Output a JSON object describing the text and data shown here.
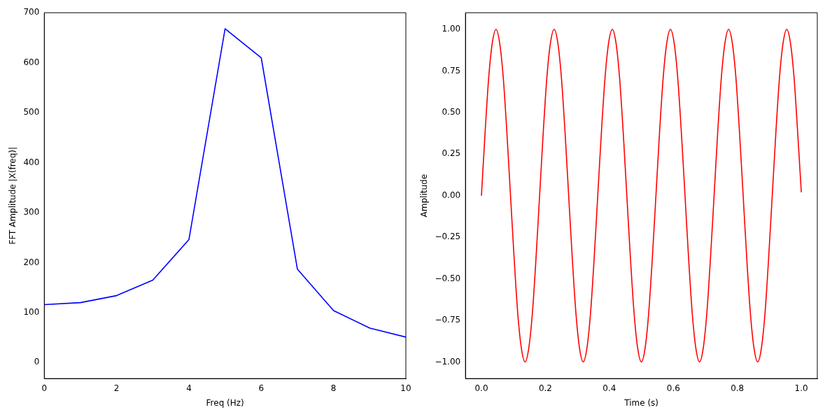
{
  "chart_data": [
    {
      "type": "line",
      "xlabel": "Freq (Hz)",
      "ylabel": "FFT Amplitude |X(freq)|",
      "x": [
        0,
        1,
        2,
        3,
        4,
        5,
        6,
        7,
        8,
        9,
        10
      ],
      "xlim": [
        0,
        10
      ],
      "xticks": [
        0,
        2,
        4,
        6,
        8,
        10
      ],
      "ylim": [
        -32,
        700
      ],
      "yticks": [
        0,
        100,
        200,
        300,
        400,
        500,
        600,
        700
      ],
      "series": [
        {
          "color": "#0000ff",
          "values": [
            116,
            120,
            134,
            165,
            246,
            668,
            610,
            187,
            104,
            69,
            51
          ]
        }
      ]
    },
    {
      "type": "line",
      "xlabel": "Time (s)",
      "ylabel": "Amplitude",
      "xlim": [
        -0.05,
        1.05
      ],
      "xticks": [
        {
          "value": 0,
          "label": "0.0"
        },
        {
          "value": 0.2,
          "label": "0.2"
        },
        {
          "value": 0.4,
          "label": "0.4"
        },
        {
          "value": 0.6,
          "label": "0.6"
        },
        {
          "value": 0.8,
          "label": "0.8"
        },
        {
          "value": 1,
          "label": "1.0"
        }
      ],
      "ylim": [
        -1.1,
        1.1
      ],
      "yticks": [
        {
          "value": -1,
          "label": "−1.00"
        },
        {
          "value": -0.75,
          "label": "−0.75"
        },
        {
          "value": -0.5,
          "label": "−0.50"
        },
        {
          "value": -0.25,
          "label": "−0.25"
        },
        {
          "value": 0,
          "label": "0.00"
        },
        {
          "value": 0.25,
          "label": "0.25"
        },
        {
          "value": 0.5,
          "label": "0.50"
        },
        {
          "value": 0.75,
          "label": "0.75"
        },
        {
          "value": 1,
          "label": "1.00"
        }
      ],
      "x": [
        0,
        0.0114,
        0.0227,
        0.0341,
        0.0455,
        0.0568,
        0.0682,
        0.0795,
        0.0909,
        0.1023,
        0.1136,
        0.125,
        0.1364,
        0.1477,
        0.1591,
        0.1705,
        0.1818,
        0.1932,
        0.2045,
        0.2159,
        0.2273,
        0.2386,
        0.25,
        0.2614,
        0.2727,
        0.2841,
        0.2955,
        0.3068,
        0.3182,
        0.3295,
        0.3409,
        0.3523,
        0.3636,
        0.375,
        0.3864,
        0.3977,
        0.4091,
        0.4205,
        0.4318,
        0.4432,
        0.4545,
        0.4659,
        0.4773,
        0.4886,
        0.5,
        0.5114,
        0.5227,
        0.5341,
        0.5455,
        0.5568,
        0.5682,
        0.5795,
        0.5909,
        0.6023,
        0.6136,
        0.625,
        0.6364,
        0.6477,
        0.6591,
        0.6705,
        0.6818,
        0.6932,
        0.7045,
        0.7159,
        0.7273,
        0.7386,
        0.75,
        0.7614,
        0.7727,
        0.7841,
        0.7955,
        0.8068,
        0.8182,
        0.8295,
        0.8409,
        0.8523,
        0.8636,
        0.875,
        0.8864,
        0.8977,
        0.9091,
        0.9205,
        0.9318,
        0.9432,
        0.9545,
        0.9659,
        0.9773,
        0.9886,
        1
      ],
      "series": [
        {
          "color": "#ff0000",
          "values": [
            0,
            0.38,
            0.71,
            0.92,
            1,
            0.92,
            0.71,
            0.38,
            0,
            -0.38,
            -0.71,
            -0.92,
            -1,
            -0.92,
            -0.71,
            -0.38,
            0,
            0.38,
            0.71,
            0.92,
            1,
            0.92,
            0.71,
            0.38,
            0,
            -0.38,
            -0.71,
            -0.92,
            -1,
            -0.92,
            -0.71,
            -0.38,
            0,
            0.38,
            0.71,
            0.92,
            1,
            0.92,
            0.71,
            0.38,
            0,
            -0.38,
            -0.71,
            -0.92,
            -1,
            -0.92,
            -0.71,
            -0.38,
            0,
            0.38,
            0.71,
            0.92,
            1,
            0.92,
            0.71,
            0.38,
            0,
            -0.38,
            -0.71,
            -0.92,
            -1,
            -0.92,
            -0.71,
            -0.38,
            0,
            0.38,
            0.71,
            0.92,
            1,
            0.92,
            0.71,
            0.38,
            0,
            -0.38,
            -0.71,
            -0.92,
            -1,
            -0.92,
            -0.71,
            -0.38,
            0,
            0.38,
            0.71,
            0.92,
            1,
            0.92,
            0.71,
            0.38,
            0.02
          ]
        }
      ]
    }
  ]
}
